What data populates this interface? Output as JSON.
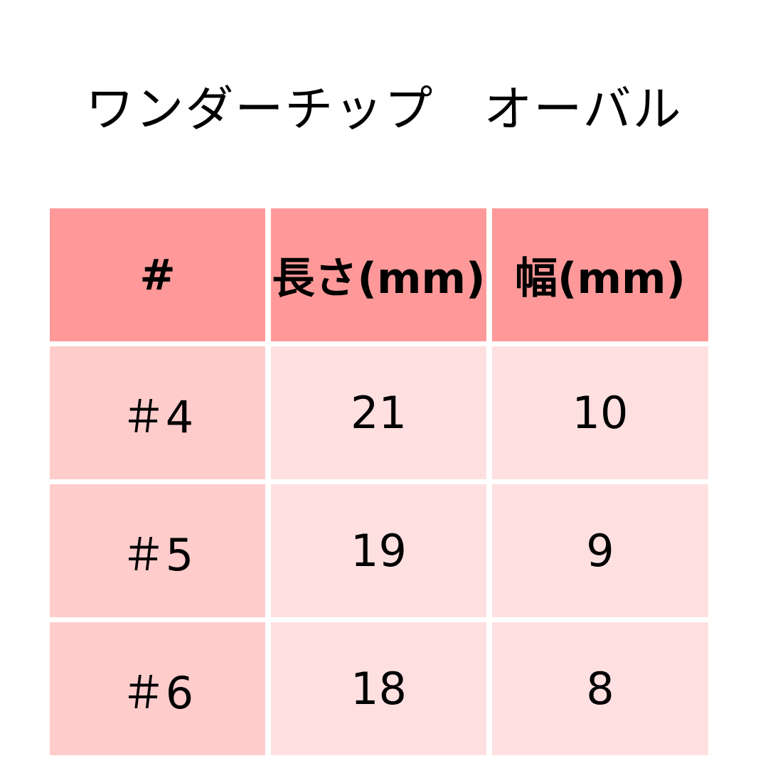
{
  "title": "ワンダーチップ　オーバル",
  "colors": {
    "header": "#FF9999",
    "first_column": "#FFCCCC",
    "body": "#FFE0E0"
  },
  "table": {
    "headers": [
      "#",
      "長さ(mm)",
      "幅(mm)"
    ],
    "rows": [
      [
        "＃4",
        "21",
        "10"
      ],
      [
        "＃5",
        "19",
        "9"
      ],
      [
        "＃6",
        "18",
        "8"
      ]
    ]
  }
}
